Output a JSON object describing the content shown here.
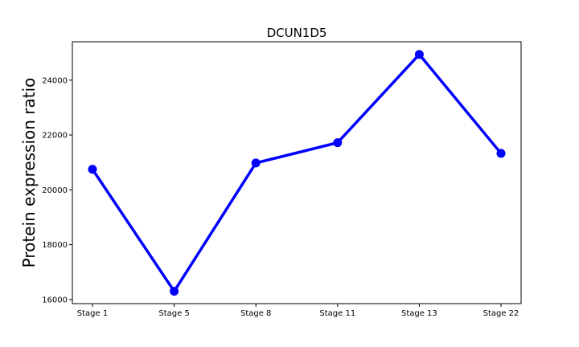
{
  "chart_data": {
    "type": "line",
    "title": "DCUN1D5",
    "xlabel": "",
    "ylabel": "Protein expression ratio",
    "categories": [
      "Stage 1",
      "Stage 5",
      "Stage 8",
      "Stage 11",
      "Stage 13",
      "Stage 22"
    ],
    "series": [
      {
        "values": [
          20750,
          16300,
          20980,
          21720,
          24940,
          21330
        ],
        "color": "#0000ff"
      }
    ],
    "ylim": [
      15850,
      25400
    ],
    "yticks": [
      16000,
      18000,
      20000,
      22000,
      24000
    ],
    "ytick_labels": [
      "16000",
      "18000",
      "20000",
      "22000",
      "24000"
    ],
    "grid": false,
    "legend": "none"
  }
}
